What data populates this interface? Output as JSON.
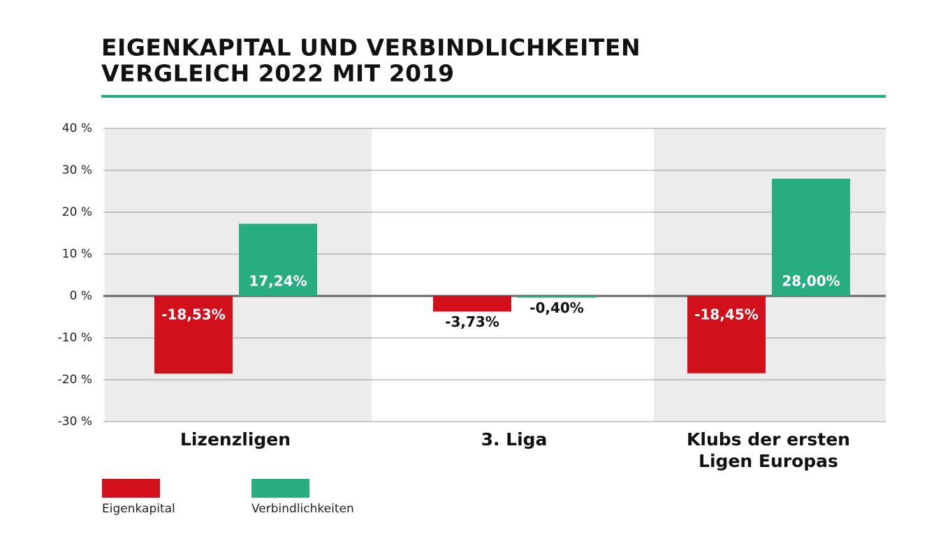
{
  "chart_data": {
    "type": "bar",
    "title_lines": [
      "EIGENKAPITAL UND VERBINDLICHKEITEN",
      "VERGLEICH 2022 MIT 2019"
    ],
    "categories": [
      "Lizenzligen",
      "3. Liga",
      "Klubs der ersten Ligen Europas"
    ],
    "series": [
      {
        "name": "Eigenkapital",
        "color": "#d1101b",
        "values": [
          -18.53,
          -3.73,
          -18.45
        ],
        "value_labels": [
          "-18,53%",
          "-3,73%",
          "-18,45%"
        ]
      },
      {
        "name": "Verbindlichkeiten",
        "color": "#27ad7f",
        "values": [
          17.24,
          -0.4,
          28.0
        ],
        "value_labels": [
          "17,24%",
          "-0,40%",
          "28,00%"
        ]
      }
    ],
    "ylim": [
      -30,
      40
    ],
    "yticks": [
      {
        "value": 40,
        "label": "40 %"
      },
      {
        "value": 30,
        "label": "30 %"
      },
      {
        "value": 20,
        "label": "20 %"
      },
      {
        "value": 10,
        "label": "10 %"
      },
      {
        "value": 0,
        "label": "0 %"
      },
      {
        "value": -10,
        "label": "-10 %"
      },
      {
        "value": -20,
        "label": "-20 %"
      },
      {
        "value": -30,
        "label": "-30 %"
      }
    ],
    "grid": true
  }
}
